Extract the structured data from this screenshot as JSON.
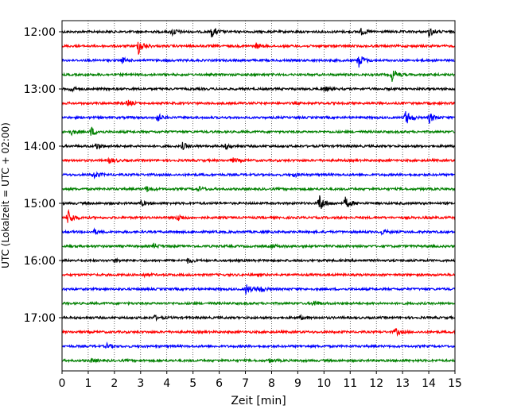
{
  "chart_data": {
    "type": "line",
    "title": "",
    "xlabel": "Zeit  [min]",
    "ylabel": "UTC (Lokalzeit = UTC + 02:00)",
    "xlim": [
      0,
      15
    ],
    "xticks": [
      0,
      1,
      2,
      3,
      4,
      5,
      6,
      7,
      8,
      9,
      10,
      11,
      12,
      13,
      14,
      15
    ],
    "xtick_labels": [
      "0",
      "1",
      "2",
      "3",
      "4",
      "5",
      "6",
      "7",
      "8",
      "9",
      "10",
      "11",
      "12",
      "13",
      "14",
      "15"
    ],
    "ytick_labels": [
      "12:00",
      "13:00",
      "14:00",
      "15:00",
      "16:00",
      "17:00"
    ],
    "ytick_rows": [
      0,
      4,
      8,
      12,
      16,
      20
    ],
    "row_interval_min": 15,
    "grid": "vertical-dotted",
    "row_colors": [
      "#000000",
      "#ff0000",
      "#0000ff",
      "#008000"
    ],
    "traces": [
      {
        "start": "12:00",
        "color": "black",
        "events": [
          [
            4.2,
            5
          ],
          [
            5.7,
            7
          ],
          [
            14.0,
            6
          ],
          [
            11.4,
            4
          ]
        ]
      },
      {
        "start": "12:15",
        "color": "red",
        "events": [
          [
            2.9,
            11
          ],
          [
            7.4,
            3
          ]
        ]
      },
      {
        "start": "12:30",
        "color": "blue",
        "events": [
          [
            11.3,
            10
          ],
          [
            2.3,
            3
          ]
        ]
      },
      {
        "start": "12:45",
        "color": "green",
        "events": [
          [
            12.6,
            8
          ]
        ]
      },
      {
        "start": "13:00",
        "color": "black",
        "events": [
          [
            0.3,
            4
          ],
          [
            10.0,
            3
          ]
        ]
      },
      {
        "start": "13:15",
        "color": "red",
        "events": [
          [
            2.5,
            4
          ]
        ]
      },
      {
        "start": "13:30",
        "color": "blue",
        "events": [
          [
            3.6,
            6
          ],
          [
            13.1,
            10
          ],
          [
            14.0,
            7
          ]
        ]
      },
      {
        "start": "13:45",
        "color": "green",
        "events": [
          [
            1.1,
            6
          ],
          [
            0.3,
            4
          ]
        ]
      },
      {
        "start": "14:00",
        "color": "black",
        "events": [
          [
            1.3,
            4
          ],
          [
            4.6,
            4
          ],
          [
            6.2,
            4
          ]
        ]
      },
      {
        "start": "14:15",
        "color": "red",
        "events": [
          [
            1.8,
            4
          ],
          [
            6.5,
            3
          ]
        ]
      },
      {
        "start": "14:30",
        "color": "blue",
        "events": [
          [
            1.2,
            5
          ],
          [
            8.8,
            3
          ]
        ]
      },
      {
        "start": "14:45",
        "color": "green",
        "events": [
          [
            3.2,
            4
          ],
          [
            5.2,
            3
          ]
        ]
      },
      {
        "start": "15:00",
        "color": "black",
        "events": [
          [
            9.8,
            13
          ],
          [
            10.8,
            8
          ],
          [
            3.0,
            3
          ]
        ]
      },
      {
        "start": "15:15",
        "color": "red",
        "events": [
          [
            0.2,
            11
          ],
          [
            4.4,
            5
          ]
        ]
      },
      {
        "start": "15:30",
        "color": "blue",
        "events": [
          [
            1.2,
            3
          ],
          [
            12.2,
            3
          ]
        ]
      },
      {
        "start": "15:45",
        "color": "green",
        "events": [
          [
            3.5,
            3
          ],
          [
            8.0,
            2
          ]
        ]
      },
      {
        "start": "16:00",
        "color": "black",
        "events": [
          [
            4.8,
            3
          ],
          [
            2.0,
            2
          ]
        ]
      },
      {
        "start": "16:15",
        "color": "red",
        "events": [
          [
            3.1,
            2
          ]
        ]
      },
      {
        "start": "16:30",
        "color": "blue",
        "events": [
          [
            7.0,
            7
          ],
          [
            7.5,
            5
          ]
        ]
      },
      {
        "start": "16:45",
        "color": "green",
        "events": [
          [
            9.6,
            4
          ]
        ]
      },
      {
        "start": "17:00",
        "color": "black",
        "events": [
          [
            3.5,
            3
          ],
          [
            9.1,
            2
          ]
        ]
      },
      {
        "start": "17:15",
        "color": "red",
        "events": [
          [
            12.7,
            5
          ]
        ]
      },
      {
        "start": "17:30",
        "color": "blue",
        "events": [
          [
            1.7,
            3
          ]
        ]
      },
      {
        "start": "17:45",
        "color": "green",
        "events": [
          [
            1.1,
            2
          ],
          [
            7.9,
            2
          ]
        ]
      }
    ]
  }
}
